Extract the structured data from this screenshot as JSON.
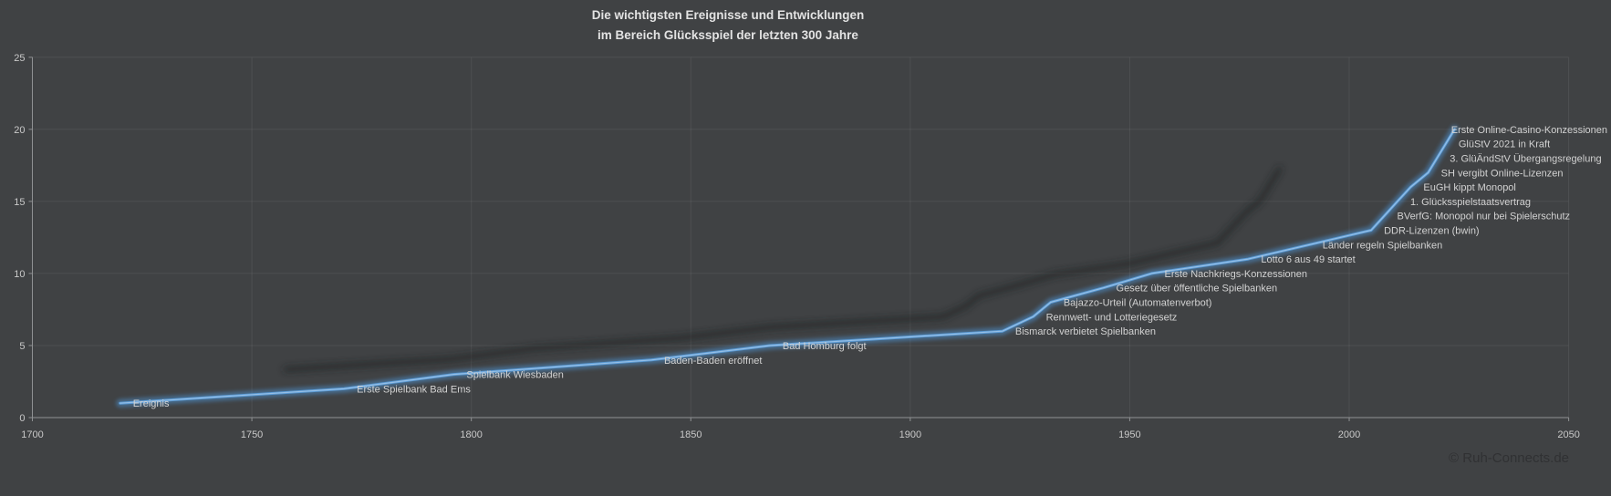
{
  "title": {
    "line1": "Die wichtigsten Ereignisse und Entwicklungen",
    "line2": "im Bereich Glücksspiel der letzten 300 Jahre"
  },
  "footer": {
    "copyright": "© Ruh-Connects.de"
  },
  "colors": {
    "background": "#404244",
    "line": "#5b9bd5",
    "line_glow": "#4e8ec9",
    "line_core": "#9cc3e8",
    "line_shadow": "#1f2123",
    "grid": "rgba(255,255,255,0.07)",
    "axis": "#8f9193",
    "tick_label": "#c9c9c9",
    "event_label": "#d2d2d2",
    "title_text": "#e3e3e3",
    "copyright_text": "#303133"
  },
  "chart_data": {
    "type": "line",
    "title": "Die wichtigsten Ereignisse und Entwicklungen im Bereich Glücksspiel der letzten 300 Jahre",
    "xlabel": "",
    "ylabel": "",
    "series_name": "Ereignis",
    "legend": "none",
    "grid": true,
    "x_axis": {
      "min": 1700,
      "max": 2050,
      "tick_step": 50,
      "ticks": [
        1700,
        1750,
        1800,
        1850,
        1900,
        1950,
        2000,
        2050
      ]
    },
    "y_axis": {
      "min": 0,
      "max": 25,
      "tick_step": 5,
      "ticks": [
        0,
        5,
        10,
        15,
        20,
        25
      ]
    },
    "events": [
      {
        "label": "Ereignis",
        "year": 1720,
        "value": 1
      },
      {
        "label": "Erste Spielbank Bad Ems",
        "year": 1771,
        "value": 2
      },
      {
        "label": "Spielbank Wiesbaden",
        "year": 1796,
        "value": 3
      },
      {
        "label": "Baden-Baden eröffnet",
        "year": 1841,
        "value": 4
      },
      {
        "label": "Bad Homburg folgt",
        "year": 1868,
        "value": 5
      },
      {
        "label": "Bismarck verbietet Spielbanken",
        "year": 1921,
        "value": 6
      },
      {
        "label": "Rennwett- und Lotteriegesetz",
        "year": 1928,
        "value": 7
      },
      {
        "label": "Bajazzo-Urteil (Automatenverbot)",
        "year": 1932,
        "value": 8
      },
      {
        "label": "Gesetz über öffentliche Spielbanken",
        "year": 1944,
        "value": 9
      },
      {
        "label": "Erste Nachkriegs-Konzessionen",
        "year": 1955,
        "value": 10
      },
      {
        "label": "Lotto 6 aus 49 startet",
        "year": 1977,
        "value": 11
      },
      {
        "label": "Länder regeln Spielbanken",
        "year": 1991,
        "value": 12
      },
      {
        "label": "DDR-Lizenzen (bwin)",
        "year": 2005,
        "value": 13
      },
      {
        "label": "BVerfG: Monopol nur bei Spielerschutz",
        "year": 2008,
        "value": 14
      },
      {
        "label": "1. Glücksspielstaatsvertrag",
        "year": 2011,
        "value": 15
      },
      {
        "label": "EuGH kippt Monopol",
        "year": 2014,
        "value": 16
      },
      {
        "label": "SH vergibt Online-Lizenzen",
        "year": 2018,
        "value": 17
      },
      {
        "label": "3. GlüÄndStV Übergangsregelung",
        "year": 2020,
        "value": 18
      },
      {
        "label": "GlüStV 2021 in Kraft",
        "year": 2022,
        "value": 19
      },
      {
        "label": "Erste Online-Casino-Konzessionen",
        "year": 2024,
        "value": 20
      }
    ]
  }
}
